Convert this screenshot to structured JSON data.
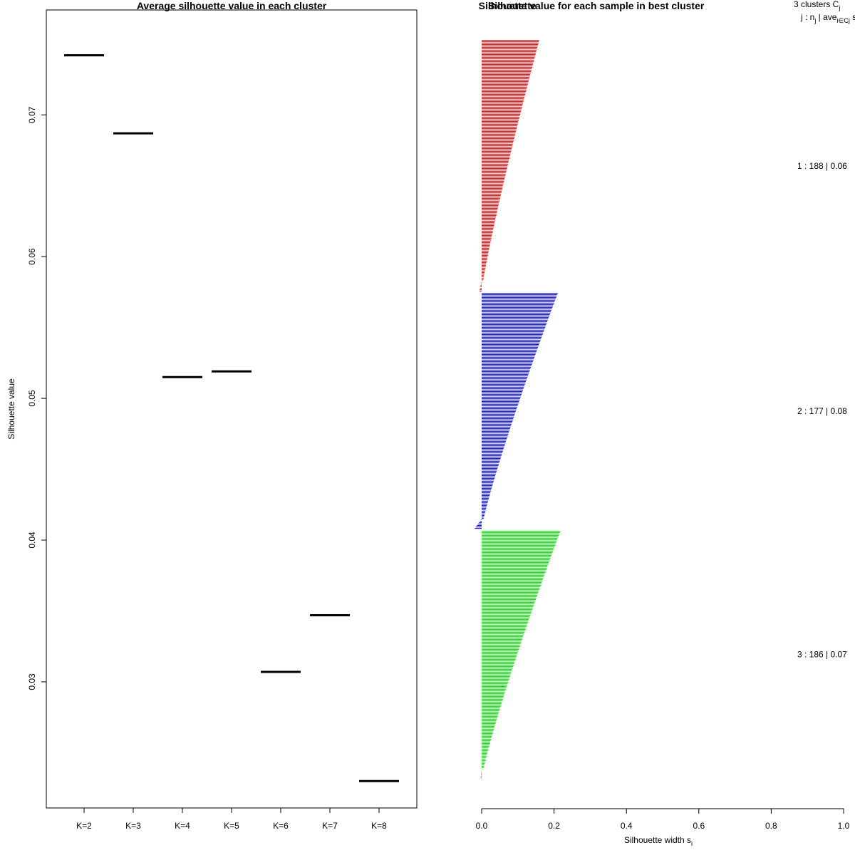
{
  "chart_data": [
    {
      "type": "scatter",
      "title": "Average silhouette value in each cluster",
      "xlabel": "",
      "ylabel": "Silhouette value",
      "categories": [
        "K=2",
        "K=3",
        "K=4",
        "K=5",
        "K=6",
        "K=7",
        "K=8"
      ],
      "values": [
        0.0742,
        0.0687,
        0.0515,
        0.0519,
        0.0307,
        0.0347,
        0.023
      ],
      "ylim": [
        0.0211,
        0.0774
      ],
      "yticks": [
        0.03,
        0.04,
        0.05,
        0.06,
        0.07
      ],
      "ytick_labels": [
        "0.03",
        "0.04",
        "0.05",
        "0.06",
        "0.07"
      ],
      "grid": false
    },
    {
      "type": "bar",
      "orientation": "horizontal",
      "title": "Silhouette value for each sample in best cluster",
      "overlapping_text": "Silhouette",
      "xlabel": "Silhouette width s",
      "xlabel_subscript": "i",
      "xlim": [
        0,
        1
      ],
      "xticks": [
        0,
        0.2,
        0.4,
        0.6,
        0.8,
        1
      ],
      "xtick_labels": [
        "0.0",
        "0.2",
        "0.4",
        "0.6",
        "0.8",
        "1.0"
      ],
      "legend": {
        "header_line1": "3  clusters  C",
        "header_line1_sub": "j",
        "header_line2": "j :  n",
        "header_line2_sub": "j",
        "header_line2_mid": " | ave",
        "header_line2_sub2": "i∈Cj",
        "header_line2_end": "  s"
      },
      "clusters": [
        {
          "id": 1,
          "n": 188,
          "avg": "0.06",
          "label": "1 :   188  |  0.06",
          "color": "#DF2020",
          "max": 0.157,
          "neg": -0.006
        },
        {
          "id": 2,
          "n": 177,
          "avg": "0.08",
          "label": "2 :   177  |  0.08",
          "color": "#2020DF",
          "max": 0.208,
          "neg": -0.019
        },
        {
          "id": 3,
          "n": 186,
          "avg": "0.07",
          "label": "3 :   186  |  0.07",
          "color": "#20DF20",
          "max": 0.215,
          "neg": -0.003
        }
      ]
    }
  ]
}
